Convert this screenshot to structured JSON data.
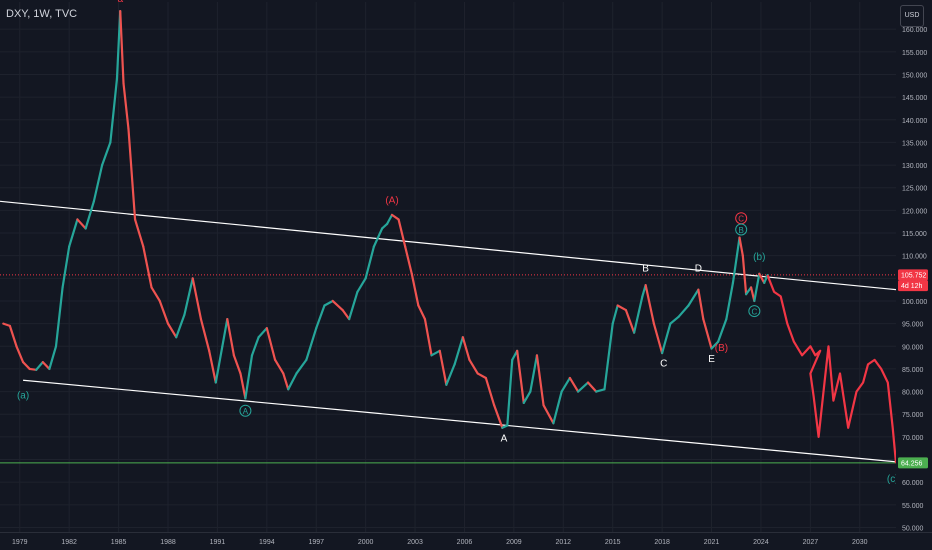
{
  "header": {
    "symbol_info": "DXY, 1W, TVC",
    "currency_button": "USD"
  },
  "chart_data": {
    "type": "line",
    "price_axis": {
      "ticks": [
        "50.000",
        "55.000",
        "60.000",
        "65.000",
        "70.000",
        "75.000",
        "80.000",
        "85.000",
        "90.000",
        "95.000",
        "100.000",
        "105.000",
        "110.000",
        "115.000",
        "120.000",
        "125.000",
        "130.000",
        "135.000",
        "140.000",
        "145.000",
        "150.000",
        "155.000",
        "160.000"
      ],
      "range": [
        49,
        166
      ]
    },
    "time_axis": {
      "ticks": [
        "1979",
        "1982",
        "1985",
        "1988",
        "1991",
        "1994",
        "1997",
        "2000",
        "2003",
        "2006",
        "2009",
        "2012",
        "2015",
        "2018",
        "2021",
        "2024",
        "2027",
        "2030"
      ],
      "range": [
        1977.8,
        2032.2
      ]
    },
    "price_series": {
      "name": "DXY",
      "points": [
        [
          1978.0,
          95.0
        ],
        [
          1978.4,
          94.5
        ],
        [
          1978.8,
          90.0
        ],
        [
          1979.2,
          86.5
        ],
        [
          1979.6,
          85.0
        ],
        [
          1980.0,
          84.8
        ],
        [
          1980.4,
          86.5
        ],
        [
          1980.8,
          85.0
        ],
        [
          1981.2,
          90.0
        ],
        [
          1981.6,
          103.0
        ],
        [
          1982.0,
          112.0
        ],
        [
          1982.5,
          118.0
        ],
        [
          1983.0,
          116.0
        ],
        [
          1983.5,
          122.0
        ],
        [
          1984.0,
          130.0
        ],
        [
          1984.5,
          135.0
        ],
        [
          1984.9,
          149.0
        ],
        [
          1985.1,
          164.0
        ],
        [
          1985.3,
          148.0
        ],
        [
          1985.6,
          138.0
        ],
        [
          1986.0,
          118.0
        ],
        [
          1986.5,
          112.0
        ],
        [
          1987.0,
          103.0
        ],
        [
          1987.5,
          100.0
        ],
        [
          1988.0,
          95.0
        ],
        [
          1988.5,
          92.0
        ],
        [
          1989.0,
          97.0
        ],
        [
          1989.5,
          105.0
        ],
        [
          1990.0,
          96.0
        ],
        [
          1990.5,
          89.0
        ],
        [
          1990.9,
          82.0
        ],
        [
          1991.3,
          90.0
        ],
        [
          1991.6,
          96.0
        ],
        [
          1992.0,
          88.0
        ],
        [
          1992.4,
          84.0
        ],
        [
          1992.7,
          78.5
        ],
        [
          1993.1,
          88.0
        ],
        [
          1993.5,
          92.0
        ],
        [
          1994.0,
          94.0
        ],
        [
          1994.5,
          87.0
        ],
        [
          1995.0,
          84.0
        ],
        [
          1995.3,
          80.5
        ],
        [
          1995.8,
          84.0
        ],
        [
          1996.4,
          87.0
        ],
        [
          1997.0,
          94.0
        ],
        [
          1997.5,
          99.0
        ],
        [
          1998.0,
          100.0
        ],
        [
          1998.6,
          98.0
        ],
        [
          1999.0,
          96.0
        ],
        [
          1999.5,
          102.0
        ],
        [
          2000.0,
          105.0
        ],
        [
          2000.5,
          112.0
        ],
        [
          2001.0,
          116.0
        ],
        [
          2001.3,
          117.0
        ],
        [
          2001.6,
          119.0
        ],
        [
          2002.0,
          118.0
        ],
        [
          2002.4,
          112.0
        ],
        [
          2002.8,
          106.0
        ],
        [
          2003.2,
          99.0
        ],
        [
          2003.6,
          96.0
        ],
        [
          2004.0,
          88.0
        ],
        [
          2004.5,
          89.0
        ],
        [
          2004.9,
          81.5
        ],
        [
          2005.4,
          86.0
        ],
        [
          2005.9,
          92.0
        ],
        [
          2006.3,
          87.0
        ],
        [
          2006.8,
          84.0
        ],
        [
          2007.3,
          83.0
        ],
        [
          2007.8,
          77.0
        ],
        [
          2008.3,
          72.0
        ],
        [
          2008.6,
          72.5
        ],
        [
          2008.9,
          87.0
        ],
        [
          2009.2,
          89.0
        ],
        [
          2009.6,
          77.5
        ],
        [
          2010.0,
          80.0
        ],
        [
          2010.4,
          88.0
        ],
        [
          2010.8,
          77.0
        ],
        [
          2011.4,
          73.0
        ],
        [
          2011.9,
          80.0
        ],
        [
          2012.4,
          83.0
        ],
        [
          2012.9,
          80.0
        ],
        [
          2013.5,
          82.0
        ],
        [
          2014.0,
          80.0
        ],
        [
          2014.5,
          80.5
        ],
        [
          2015.0,
          95.0
        ],
        [
          2015.3,
          99.0
        ],
        [
          2015.8,
          98.0
        ],
        [
          2016.3,
          93.0
        ],
        [
          2016.8,
          101.0
        ],
        [
          2017.0,
          103.5
        ],
        [
          2017.5,
          95.0
        ],
        [
          2018.0,
          88.5
        ],
        [
          2018.5,
          95.0
        ],
        [
          2019.0,
          96.5
        ],
        [
          2019.6,
          99.0
        ],
        [
          2020.2,
          102.5
        ],
        [
          2020.5,
          96.0
        ],
        [
          2021.0,
          89.5
        ],
        [
          2021.4,
          91.0
        ],
        [
          2021.9,
          96.0
        ],
        [
          2022.3,
          104.0
        ],
        [
          2022.7,
          114.0
        ],
        [
          2022.9,
          110.0
        ],
        [
          2023.1,
          101.5
        ],
        [
          2023.4,
          103.0
        ],
        [
          2023.6,
          100.0
        ],
        [
          2023.9,
          106.0
        ],
        [
          2024.2,
          104.0
        ],
        [
          2024.4,
          105.7
        ]
      ],
      "last_value": "105.752",
      "countdown": "4d 12h"
    },
    "projection_series": {
      "points": [
        [
          2024.4,
          105.7
        ],
        [
          2024.8,
          102.0
        ],
        [
          2025.2,
          101.0
        ],
        [
          2025.6,
          95.0
        ],
        [
          2026.0,
          91.0
        ],
        [
          2026.5,
          88.0
        ],
        [
          2027.0,
          90.0
        ],
        [
          2027.3,
          88.0
        ],
        [
          2027.6,
          89.0
        ],
        [
          2027.0,
          84.0
        ],
        [
          2027.2,
          79.0
        ],
        [
          2027.5,
          70.0
        ],
        [
          2027.8,
          80.0
        ],
        [
          2028.1,
          90.0
        ],
        [
          2028.4,
          78.0
        ],
        [
          2028.8,
          84.0
        ],
        [
          2029.3,
          72.0
        ],
        [
          2029.8,
          80.0
        ],
        [
          2030.2,
          82.0
        ],
        [
          2030.5,
          86.0
        ],
        [
          2030.9,
          87.0
        ],
        [
          2031.3,
          85.0
        ],
        [
          2031.7,
          82.0
        ],
        [
          2032.0,
          72.0
        ],
        [
          2032.2,
          64.2
        ]
      ]
    },
    "horizontal_lines": [
      {
        "value": 105.752,
        "color": "#f23645",
        "style": "dotted"
      },
      {
        "value": 64.256,
        "color": "#4caf50",
        "style": "solid"
      }
    ],
    "trendlines": [
      {
        "from": [
          1977.8,
          122.0
        ],
        "to": [
          2032.2,
          102.5
        ],
        "color": "#ffffff"
      },
      {
        "from": [
          1979.2,
          82.5
        ],
        "to": [
          2032.2,
          64.5
        ],
        "color": "#ffffff"
      }
    ],
    "price_labels": [
      {
        "text": "105.752",
        "value": 105.752,
        "color": "#f23645"
      },
      {
        "text": "4d 12h",
        "value": 103.4,
        "color": "#f23645"
      },
      {
        "text": "64.256",
        "value": 64.256,
        "color": "#4caf50"
      }
    ],
    "wave_labels": [
      {
        "text": "a",
        "x": 1985.1,
        "y": 166.0,
        "color": "#f23645",
        "circled": false
      },
      {
        "text": "(a)",
        "x": 1979.2,
        "y": 78.5,
        "color": "#26a69a",
        "circled": false
      },
      {
        "text": "A",
        "x": 1992.7,
        "y": 75.0,
        "color": "#26a69a",
        "circled": true
      },
      {
        "text": "(A)",
        "x": 2001.6,
        "y": 121.5,
        "color": "#f23645",
        "circled": false
      },
      {
        "text": "A",
        "x": 2008.4,
        "y": 69.0,
        "color": "#ffffff",
        "circled": false
      },
      {
        "text": "B",
        "x": 2017.0,
        "y": 106.5,
        "color": "#ffffff",
        "circled": false
      },
      {
        "text": "C",
        "x": 2018.1,
        "y": 85.5,
        "color": "#ffffff",
        "circled": false
      },
      {
        "text": "D",
        "x": 2020.2,
        "y": 106.5,
        "color": "#ffffff",
        "circled": false
      },
      {
        "text": "E",
        "x": 2021.0,
        "y": 86.5,
        "color": "#ffffff",
        "circled": false
      },
      {
        "text": "(B)",
        "x": 2021.6,
        "y": 89.0,
        "color": "#f23645",
        "circled": false
      },
      {
        "text": "C",
        "x": 2022.8,
        "y": 117.5,
        "color": "#f23645",
        "circled": true
      },
      {
        "text": "B",
        "x": 2022.8,
        "y": 115.0,
        "color": "#26a69a",
        "circled": true
      },
      {
        "text": "(b)",
        "x": 2023.9,
        "y": 109.0,
        "color": "#26a69a",
        "circled": false
      },
      {
        "text": "C",
        "x": 2023.6,
        "y": 97.0,
        "color": "#26a69a",
        "circled": true
      },
      {
        "text": "(c)",
        "x": 2032.0,
        "y": 60.0,
        "color": "#26a69a",
        "circled": false
      }
    ]
  }
}
